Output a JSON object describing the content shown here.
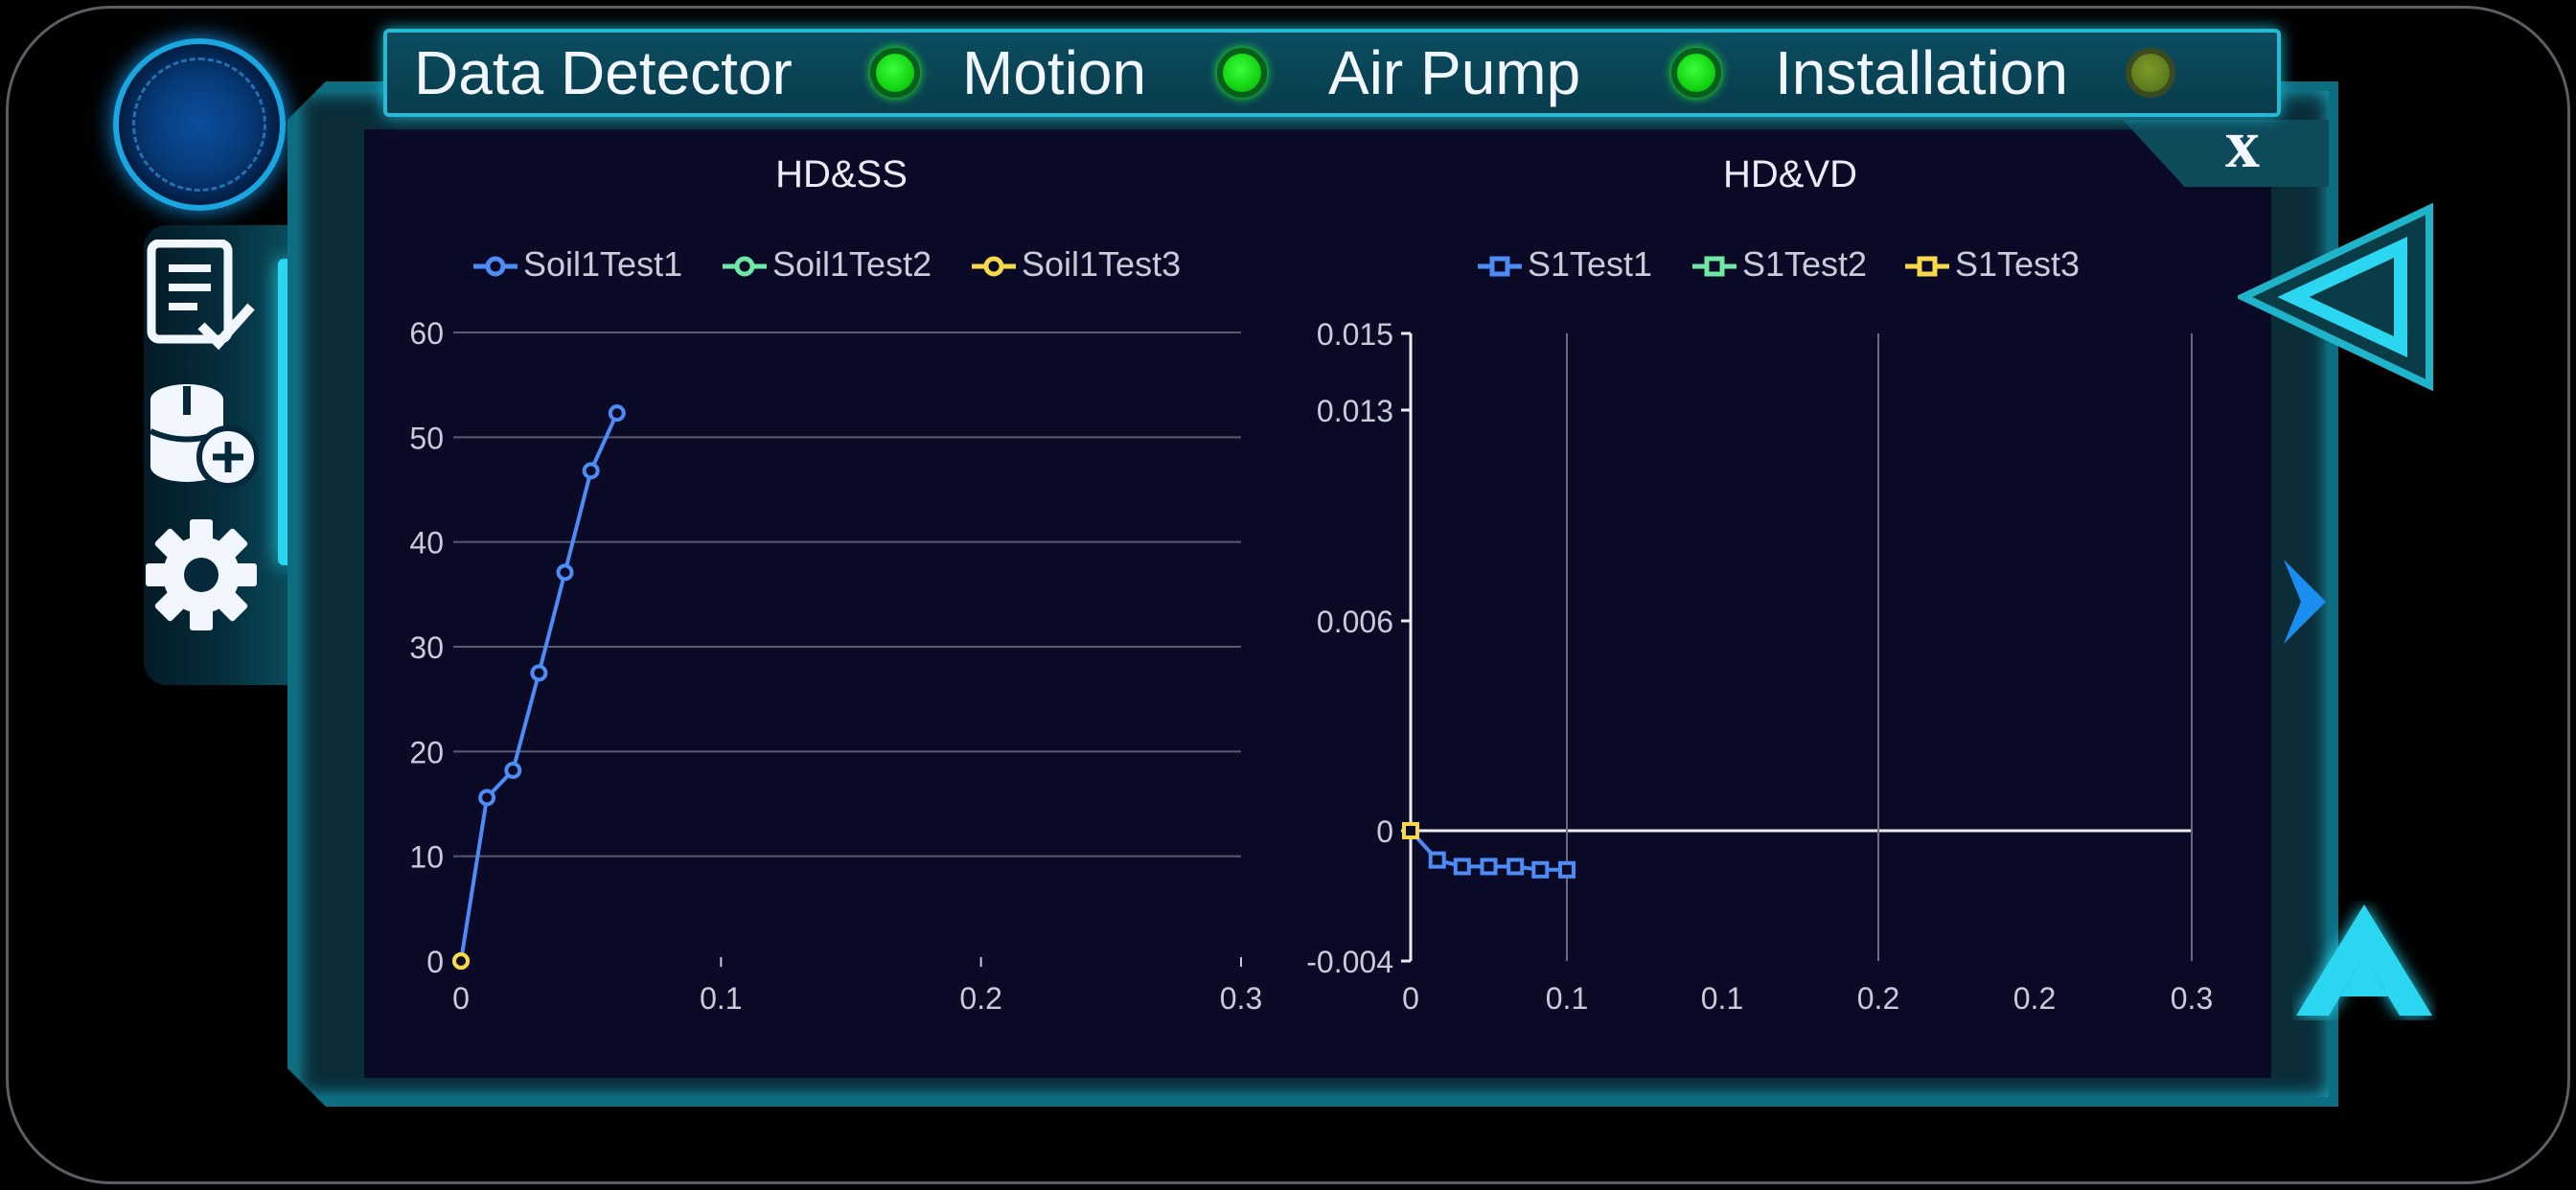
{
  "status_bar": {
    "items": [
      {
        "label": "Data Detector",
        "state": "on"
      },
      {
        "label": "Motion",
        "state": "on"
      },
      {
        "label": "Air Pump",
        "state": "on"
      },
      {
        "label": "Installation",
        "state": "dim"
      }
    ]
  },
  "close_label": "x",
  "sidebar": {
    "icons": [
      "report-check-icon",
      "database-add-icon",
      "gear-icon"
    ]
  },
  "colors": {
    "series_blue": "#4d8cf5",
    "series_green": "#6fe8a6",
    "series_yellow": "#f5d94a",
    "accent_cyan": "#2ad6f0"
  },
  "chart_data": [
    {
      "type": "line",
      "title": "HD&SS",
      "legend": [
        "Soil1Test1",
        "Soil1Test2",
        "Soil1Test3"
      ],
      "y_ticks": [
        "60",
        "50",
        "40",
        "30",
        "20",
        "10",
        "0"
      ],
      "x_ticks": [
        "0",
        "0.1",
        "0.2",
        "0.3"
      ],
      "xlim": [
        0,
        0.3
      ],
      "ylim": [
        0,
        60
      ],
      "grid": "horizontal",
      "legend_position": "top",
      "series": [
        {
          "name": "Soil1Test1",
          "x": [
            0,
            0.01,
            0.02,
            0.03,
            0.04,
            0.05,
            0.06
          ],
          "y": [
            0,
            15.6,
            18.2,
            27.5,
            37.1,
            46.8,
            52.3
          ]
        },
        {
          "name": "Soil1Test2",
          "x": [
            0
          ],
          "y": [
            0
          ]
        },
        {
          "name": "Soil1Test3",
          "x": [
            0
          ],
          "y": [
            0
          ]
        }
      ]
    },
    {
      "type": "line",
      "title": "HD&VD",
      "legend": [
        "S1Test1",
        "S1Test2",
        "S1Test3"
      ],
      "y_ticks": [
        "0.015",
        "0.013",
        "0.006",
        "0",
        "-0.004"
      ],
      "x_ticks": [
        "0",
        "0.1",
        "0.1",
        "0.2",
        "0.2",
        "0.3"
      ],
      "grid": "vertical",
      "legend_position": "top",
      "series": [
        {
          "name": "S1Test1",
          "x": [
            0,
            0.017,
            0.033,
            0.05,
            0.067,
            0.083,
            0.1
          ],
          "y": [
            0,
            -0.0009,
            -0.0011,
            -0.0011,
            -0.0011,
            -0.0012,
            -0.0012
          ]
        },
        {
          "name": "S1Test2",
          "x": [
            0
          ],
          "y": [
            0
          ]
        },
        {
          "name": "S1Test3",
          "x": [
            0
          ],
          "y": [
            0
          ]
        }
      ]
    }
  ]
}
